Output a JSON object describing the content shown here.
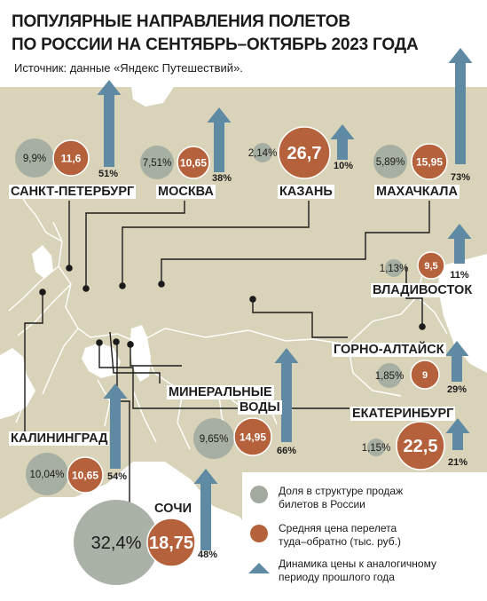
{
  "title_line1": "ПОПУЛЯРНЫЕ НАПРАВЛЕНИЯ ПОЛЕТОВ",
  "title_line2": "ПО РОССИИ НА СЕНТЯБРЬ–ОКТЯБРЬ 2023 ГОДА",
  "source": "Источник: данные «Яндекс Путешествий».",
  "colors": {
    "share": "#a3aa9f",
    "price": "#b5613b",
    "arrow": "#5f8aa3",
    "land": "#d9d4b9",
    "sea": "#ffffff"
  },
  "cities": [
    {
      "name": "САНКТ-ПЕТЕРБУРГ",
      "share": "9,9%",
      "price": "11,6",
      "growth": "51%",
      "share_value": 9.9,
      "price_value": 11.6,
      "growth_value": 51
    },
    {
      "name": "МОСКВА",
      "share": "7,51%",
      "price": "10,65",
      "growth": "38%",
      "share_value": 7.51,
      "price_value": 10.65,
      "growth_value": 38
    },
    {
      "name": "КАЗАНЬ",
      "share": "2,14%",
      "price": "26,7",
      "growth": "10%",
      "share_value": 2.14,
      "price_value": 26.7,
      "growth_value": 10
    },
    {
      "name": "МАХАЧКАЛА",
      "share": "5,89%",
      "price": "15,95",
      "growth": "73%",
      "share_value": 5.89,
      "price_value": 15.95,
      "growth_value": 73
    },
    {
      "name": "ВЛАДИВОСТОК",
      "share": "1,13%",
      "price": "9,5",
      "growth": "11%",
      "share_value": 1.13,
      "price_value": 9.5,
      "growth_value": 11
    },
    {
      "name": "ГОРНО-АЛТАЙСК",
      "share": "1,85%",
      "price": "9",
      "growth": "29%",
      "share_value": 1.85,
      "price_value": 9,
      "growth_value": 29
    },
    {
      "name": "ЕКАТЕРИНБУРГ",
      "share": "1,15%",
      "price": "22,5",
      "growth": "21%",
      "share_value": 1.15,
      "price_value": 22.5,
      "growth_value": 21
    },
    {
      "name": "МИНЕРАЛЬНЫЕ ВОДЫ",
      "name_line1": "МИНЕРАЛЬНЫЕ",
      "name_line2": "ВОДЫ",
      "share": "9,65%",
      "price": "14,95",
      "growth": "66%",
      "share_value": 9.65,
      "price_value": 14.95,
      "growth_value": 66
    },
    {
      "name": "КАЛИНИНГРАД",
      "share": "10,04%",
      "price": "10,65",
      "growth": "54%",
      "share_value": 10.04,
      "price_value": 10.65,
      "growth_value": 54
    },
    {
      "name": "СОЧИ",
      "share": "32,4%",
      "price": "18,75",
      "growth": "48%",
      "share_value": 32.4,
      "price_value": 18.75,
      "growth_value": 48
    }
  ],
  "legend": {
    "share": [
      "Доля в структуре продаж",
      "билетов в России"
    ],
    "price": [
      "Средняя цена перелета",
      "туда–обратно (тыс. руб.)"
    ],
    "growth": [
      "Динамика цены к аналогичному",
      "периоду прошлого года"
    ]
  }
}
